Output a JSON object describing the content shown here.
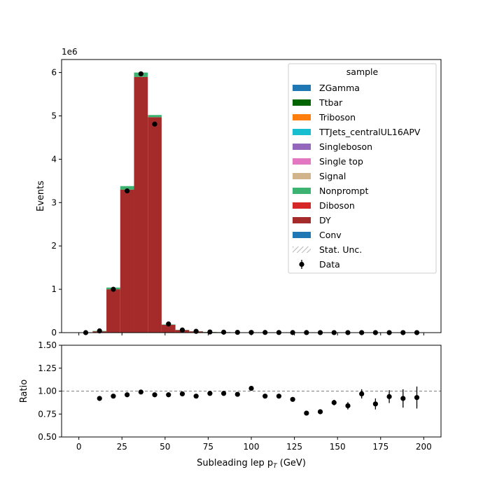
{
  "chart_data": [
    {
      "type": "bar",
      "stacked": true,
      "ylabel": "Events",
      "y_multiplier_label": "1e6",
      "xlim": [
        -10,
        210
      ],
      "ylim": [
        0,
        6.3
      ],
      "yticks": [
        0,
        1,
        2,
        3,
        4,
        5,
        6
      ],
      "bin_edges": [
        0,
        8,
        16,
        24,
        32,
        40,
        48,
        56,
        64,
        72,
        80,
        88,
        96,
        104,
        112,
        120,
        128,
        136,
        144,
        152,
        160,
        168,
        176,
        184,
        192,
        200
      ],
      "series": [
        {
          "name": "DY",
          "color": "#a52a2a",
          "values": [
            0.0,
            0.03,
            1.0,
            3.3,
            5.9,
            4.97,
            0.18,
            0.06,
            0.03,
            0.015,
            0.01,
            0.007,
            0.005,
            0.004,
            0.003,
            0.002,
            0.0015,
            0.001,
            0.001,
            0.0008,
            0.0006,
            0.0005,
            0.0004,
            0.0003,
            0.0003
          ]
        },
        {
          "name": "Nonprompt",
          "color": "#3cb371",
          "values": [
            0.0,
            0.01,
            0.04,
            0.08,
            0.1,
            0.05,
            0.01,
            0.005,
            0.003,
            0.002,
            0.001,
            0.001,
            0.0008,
            0.0006,
            0.0005,
            0.0004,
            0.0003,
            0.0002,
            0.0002,
            0.0001,
            0.0001,
            0.0001,
            0.0001,
            0.0001,
            0.0001
          ]
        }
      ],
      "data": {
        "name": "Data",
        "x": [
          4,
          12,
          20,
          28,
          36,
          44,
          52,
          60,
          68,
          76,
          84,
          92,
          100,
          108,
          116,
          124,
          132,
          140,
          148,
          156,
          164,
          172,
          180,
          188,
          196
        ],
        "y": [
          0.0,
          0.04,
          1.0,
          3.27,
          5.97,
          4.81,
          0.2,
          0.06,
          0.03,
          0.015,
          0.01,
          0.007,
          0.005,
          0.004,
          0.003,
          0.002,
          0.0015,
          0.001,
          0.001,
          0.0008,
          0.0006,
          0.0005,
          0.0004,
          0.0003,
          0.0003
        ]
      },
      "legend": {
        "title": "sample",
        "placement": "top-right",
        "entries": [
          {
            "name": "ZGamma",
            "color": "#1f77b4",
            "style": "patch"
          },
          {
            "name": "Ttbar",
            "color": "#006400",
            "style": "patch"
          },
          {
            "name": "Triboson",
            "color": "#ff7f0e",
            "style": "patch"
          },
          {
            "name": "TTJets_centralUL16APV",
            "color": "#17becf",
            "style": "patch"
          },
          {
            "name": "Singleboson",
            "color": "#9467bd",
            "style": "patch"
          },
          {
            "name": "Single top",
            "color": "#e377c2",
            "style": "patch"
          },
          {
            "name": "Signal",
            "color": "#d2b48c",
            "style": "patch"
          },
          {
            "name": "Nonprompt",
            "color": "#3cb371",
            "style": "patch"
          },
          {
            "name": "Diboson",
            "color": "#d62728",
            "style": "patch"
          },
          {
            "name": "DY",
            "color": "#a52a2a",
            "style": "patch"
          },
          {
            "name": "Conv",
            "color": "#1f77b4",
            "style": "patch"
          },
          {
            "name": "Stat. Unc.",
            "color": "#808080",
            "style": "hatch"
          },
          {
            "name": "Data",
            "color": "#000000",
            "style": "marker"
          }
        ]
      }
    },
    {
      "type": "scatter",
      "xlabel": "Subleading lep p",
      "xlabel_sub": "T",
      "xlabel_unit": " (GeV)",
      "ylabel": "Ratio",
      "xlim": [
        -10,
        210
      ],
      "ylim": [
        0.5,
        1.5
      ],
      "xticks": [
        0,
        25,
        50,
        75,
        100,
        125,
        150,
        175,
        200
      ],
      "yticks": [
        0.5,
        0.75,
        1.0,
        1.25,
        1.5
      ],
      "ytick_labels": [
        "0.50",
        "0.75",
        "1.00",
        "1.25",
        "1.50"
      ],
      "reference_line": 1.0,
      "points": [
        {
          "x": 12,
          "y": 0.92,
          "err": 0.0
        },
        {
          "x": 20,
          "y": 0.945,
          "err": 0.0
        },
        {
          "x": 28,
          "y": 0.96,
          "err": 0.0
        },
        {
          "x": 36,
          "y": 0.99,
          "err": 0.0
        },
        {
          "x": 44,
          "y": 0.96,
          "err": 0.0
        },
        {
          "x": 52,
          "y": 0.96,
          "err": 0.0
        },
        {
          "x": 60,
          "y": 0.97,
          "err": 0.0
        },
        {
          "x": 68,
          "y": 0.945,
          "err": 0.0
        },
        {
          "x": 76,
          "y": 0.975,
          "err": 0.0
        },
        {
          "x": 84,
          "y": 0.975,
          "err": 0.0
        },
        {
          "x": 92,
          "y": 0.965,
          "err": 0.0
        },
        {
          "x": 100,
          "y": 1.03,
          "err": 0.0
        },
        {
          "x": 108,
          "y": 0.945,
          "err": 0.0
        },
        {
          "x": 116,
          "y": 0.945,
          "err": 0.0
        },
        {
          "x": 124,
          "y": 0.91,
          "err": 0.0
        },
        {
          "x": 132,
          "y": 0.76,
          "err": 0.0
        },
        {
          "x": 140,
          "y": 0.775,
          "err": 0.0
        },
        {
          "x": 148,
          "y": 0.875,
          "err": 0.03
        },
        {
          "x": 156,
          "y": 0.84,
          "err": 0.04
        },
        {
          "x": 164,
          "y": 0.97,
          "err": 0.05
        },
        {
          "x": 172,
          "y": 0.86,
          "err": 0.06
        },
        {
          "x": 180,
          "y": 0.94,
          "err": 0.07
        },
        {
          "x": 188,
          "y": 0.92,
          "err": 0.1
        },
        {
          "x": 196,
          "y": 0.93,
          "err": 0.12
        }
      ]
    }
  ]
}
